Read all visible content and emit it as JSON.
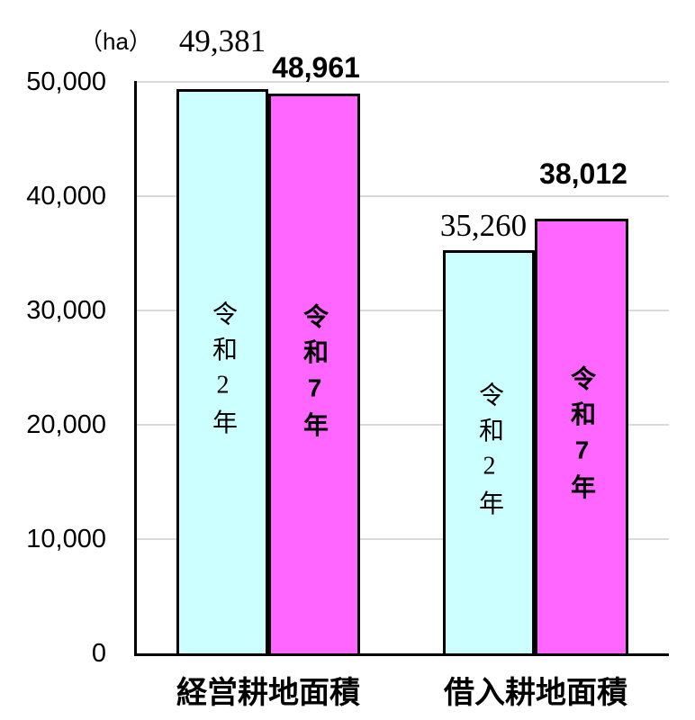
{
  "unit_label": "（ha）",
  "chart_data": {
    "type": "bar",
    "title": "",
    "categories": [
      "経営耕地面積",
      "借入耕地面積"
    ],
    "series": [
      {
        "name": "令和2年",
        "values": [
          49381,
          35260
        ],
        "value_labels": [
          "49,381",
          "35,260"
        ],
        "color": "#ccffff"
      },
      {
        "name": "令和7年",
        "values": [
          48961,
          38012
        ],
        "value_labels": [
          "48,961",
          "38,012"
        ],
        "color": "#ff66ff"
      }
    ],
    "ylabel": "（ha）",
    "ylim": [
      0,
      50000
    ],
    "ytick_interval": 10000,
    "yticks": [
      "50,000",
      "40,000",
      "30,000",
      "20,000",
      "10,000",
      "0"
    ],
    "grid": true,
    "legend_position": "inside-bars",
    "bar_border_color": "#000000",
    "gridline_color": "#d9d9d9"
  }
}
